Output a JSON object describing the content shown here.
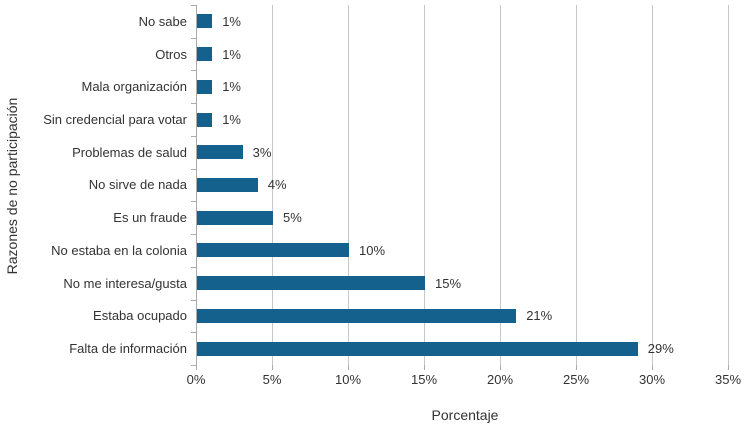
{
  "chart_data": {
    "type": "bar",
    "orientation": "horizontal",
    "title": "",
    "xlabel": "Porcentaje",
    "ylabel": "Razones de no participación",
    "categories": [
      "No sabe",
      "Otros",
      "Mala organización",
      "Sin credencial para votar",
      "Problemas de salud",
      "No sirve de nada",
      "Es un fraude",
      "No estaba en la colonia",
      "No me interesa/gusta",
      "Estaba ocupado",
      "Falta de información"
    ],
    "values": [
      1,
      1,
      1,
      1,
      3,
      4,
      5,
      10,
      15,
      21,
      29
    ],
    "data_labels": [
      "1%",
      "1%",
      "1%",
      "1%",
      "3%",
      "4%",
      "5%",
      "10%",
      "15%",
      "21%",
      "29%"
    ],
    "x_ticks": [
      0,
      5,
      10,
      15,
      20,
      25,
      30,
      35
    ],
    "x_tick_labels": [
      "0%",
      "5%",
      "10%",
      "15%",
      "20%",
      "25%",
      "30%",
      "35%"
    ],
    "xlim": [
      0,
      35
    ],
    "grid": "vertical-only",
    "legend": "none",
    "bar_color": "#15618e",
    "grid_color": "#c9c9c9",
    "axis_color": "#ababab",
    "text_color": "#333333"
  }
}
